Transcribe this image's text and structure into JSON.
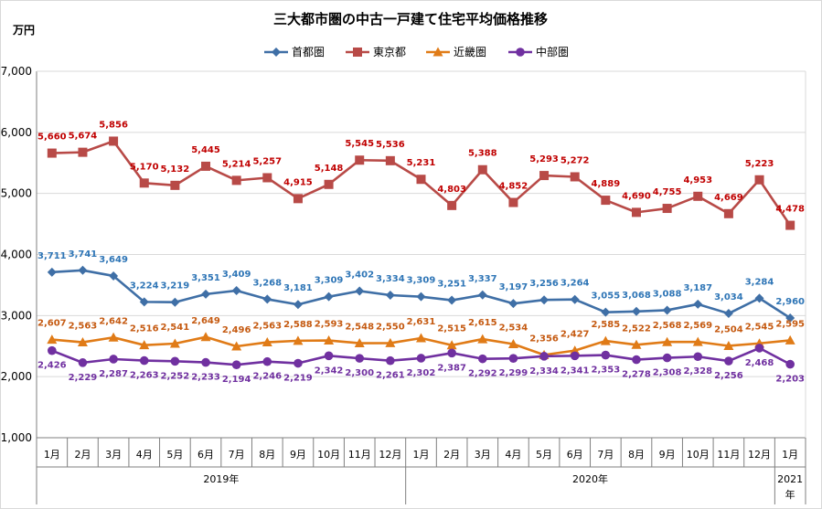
{
  "chart_data": {
    "type": "line",
    "title": "三大都市圏の中古一戸建て住宅平均価格推移",
    "ylabel": "万円",
    "ylim": [
      1000,
      7000
    ],
    "yticks": [
      "1,000",
      "2,000",
      "3,000",
      "4,000",
      "5,000",
      "6,000",
      "7,000"
    ],
    "ytick_values": [
      1000,
      2000,
      3000,
      4000,
      5000,
      6000,
      7000
    ],
    "grid": true,
    "legend_position": "top-center",
    "categories": [
      "1月",
      "2月",
      "3月",
      "4月",
      "5月",
      "6月",
      "7月",
      "8月",
      "9月",
      "10月",
      "11月",
      "12月",
      "1月",
      "2月",
      "3月",
      "4月",
      "5月",
      "6月",
      "7月",
      "8月",
      "9月",
      "10月",
      "11月",
      "12月",
      "1月"
    ],
    "year_groups": [
      {
        "label": "2019年",
        "count": 12
      },
      {
        "label": "2020年",
        "count": 12
      },
      {
        "label": "2021年",
        "count": 1
      }
    ],
    "series": [
      {
        "name": "首都圏",
        "color": "#3f6fa6",
        "label_color": "#2e75b6",
        "marker": "diamond",
        "values": [
          3711,
          3741,
          3649,
          3224,
          3219,
          3351,
          3409,
          3268,
          3181,
          3309,
          3402,
          3334,
          3309,
          3251,
          3337,
          3197,
          3256,
          3264,
          3055,
          3068,
          3088,
          3187,
          3034,
          3284,
          2960
        ],
        "labels": [
          "3,711",
          "3,741",
          "3,649",
          "3,224",
          "3,219",
          "3,351",
          "3,409",
          "3,268",
          "3,181",
          "3,309",
          "3,402",
          "3,334",
          "3,309",
          "3,251",
          "3,337",
          "3,197",
          "3,256",
          "3,264",
          "3,055",
          "3,068",
          "3,088",
          "3,187",
          "3,034",
          "3,284",
          "2,960"
        ]
      },
      {
        "name": "東京都",
        "color": "#b84a47",
        "label_color": "#c00000",
        "marker": "square",
        "values": [
          5660,
          5674,
          5856,
          5170,
          5132,
          5445,
          5214,
          5257,
          4915,
          5148,
          5545,
          5536,
          5231,
          4803,
          5388,
          4852,
          5293,
          5272,
          4889,
          4690,
          4755,
          4953,
          4669,
          5223,
          4478
        ],
        "labels": [
          "5,660",
          "5,674",
          "5,856",
          "5,170",
          "5,132",
          "5,445",
          "5,214",
          "5,257",
          "4,915",
          "5,148",
          "5,545",
          "5,536",
          "5,231",
          "4,803",
          "5,388",
          "4,852",
          "5,293",
          "5,272",
          "4,889",
          "4,690",
          "4,755",
          "4,953",
          "4,669",
          "5,223",
          "4,478"
        ]
      },
      {
        "name": "近畿圏",
        "color": "#e07b17",
        "label_color": "#c55a11",
        "marker": "triangle",
        "values": [
          2607,
          2563,
          2642,
          2516,
          2541,
          2649,
          2496,
          2563,
          2588,
          2593,
          2548,
          2550,
          2631,
          2515,
          2615,
          2534,
          2356,
          2427,
          2585,
          2522,
          2568,
          2569,
          2504,
          2545,
          2595
        ],
        "labels": [
          "2,607",
          "2,563",
          "2,642",
          "2,516",
          "2,541",
          "2,649",
          "2,496",
          "2,563",
          "2,588",
          "2,593",
          "2,548",
          "2,550",
          "2,631",
          "2,515",
          "2,615",
          "2,534",
          "2,356",
          "2,427",
          "2,585",
          "2,522",
          "2,568",
          "2,569",
          "2,504",
          "2,545",
          "2,595"
        ]
      },
      {
        "name": "中部圏",
        "color": "#7030a0",
        "label_color": "#7030a0",
        "marker": "circle",
        "values": [
          2426,
          2229,
          2287,
          2263,
          2252,
          2233,
          2194,
          2246,
          2219,
          2342,
          2300,
          2261,
          2302,
          2387,
          2292,
          2299,
          2334,
          2341,
          2353,
          2278,
          2308,
          2328,
          2256,
          2468,
          2203
        ],
        "labels": [
          "2,426",
          "2,229",
          "2,287",
          "2,263",
          "2,252",
          "2,233",
          "2,194",
          "2,246",
          "2,219",
          "2,342",
          "2,300",
          "2,261",
          "2,302",
          "2,387",
          "2,292",
          "2,299",
          "2,334",
          "2,341",
          "2,353",
          "2,278",
          "2,308",
          "2,328",
          "2,256",
          "2,468",
          "2,203"
        ]
      }
    ]
  }
}
